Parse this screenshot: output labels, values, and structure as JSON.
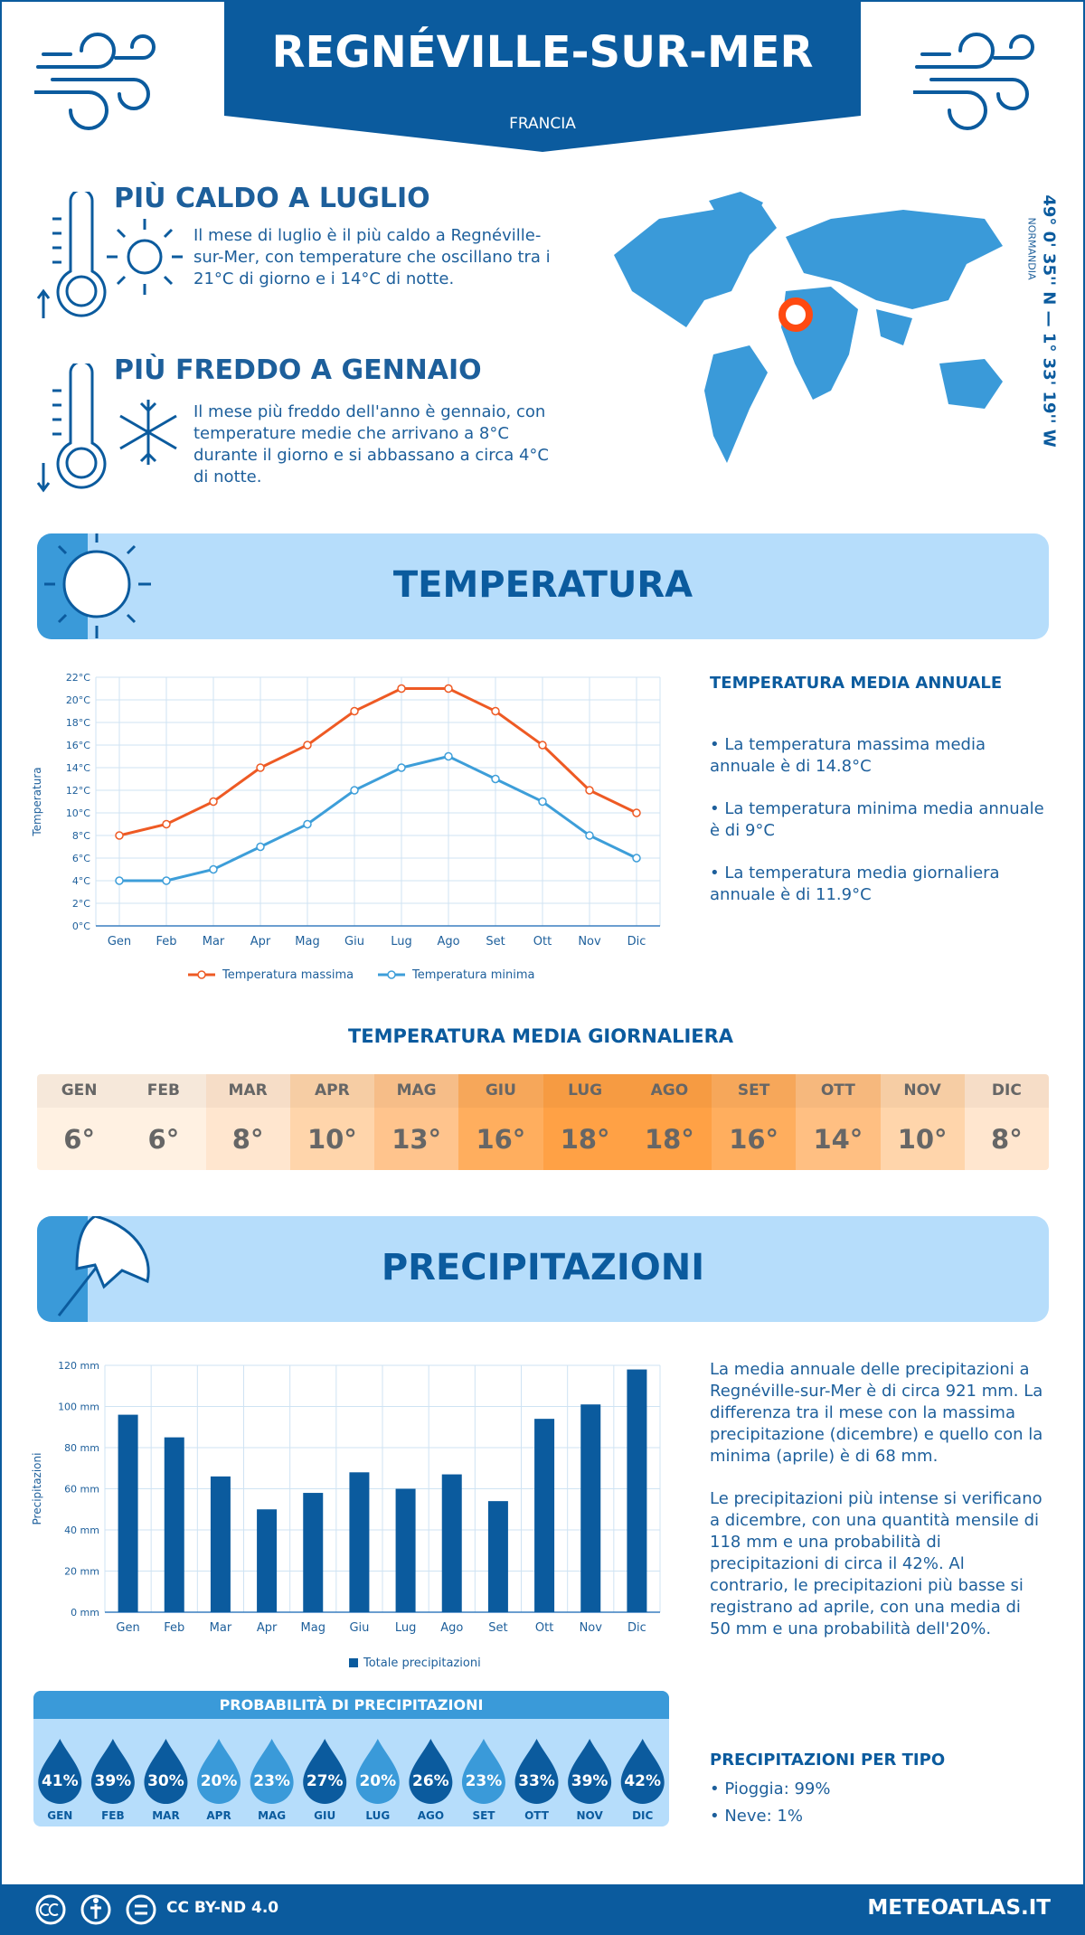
{
  "header": {
    "title": "REGNÉVILLE-SUR-MER",
    "subtitle": "FRANCIA"
  },
  "hottest": {
    "title": "PIÙ CALDO A LUGLIO",
    "text": "Il mese di luglio è il più caldo a Regnéville-sur-Mer, con temperature che oscillano tra i 21°C di giorno e i 14°C di notte."
  },
  "coldest": {
    "title": "PIÙ FREDDO A GENNAIO",
    "text": "Il mese più freddo dell'anno è gennaio, con temperature medie che arrivano a 8°C durante il giorno e si abbassano a circa 4°C di notte."
  },
  "map": {
    "coordinates": "49° 0' 35'' N — 1° 33' 19'' W",
    "region": "NORMANDIA"
  },
  "temperature": {
    "heading": "TEMPERATURA",
    "summary_title": "TEMPERATURA MEDIA ANNUALE",
    "bullets": [
      "• La temperatura massima media annuale è di 14.8°C",
      "• La temperatura minima media annuale è di 9°C",
      "• La temperatura media giornaliera annuale è di 11.9°C"
    ]
  },
  "daily": {
    "title": "TEMPERATURA MEDIA GIORNALIERA",
    "months": [
      "GEN",
      "FEB",
      "MAR",
      "APR",
      "MAG",
      "GIU",
      "LUG",
      "AGO",
      "SET",
      "OTT",
      "NOV",
      "DIC"
    ],
    "values": [
      "6°",
      "6°",
      "8°",
      "10°",
      "13°",
      "16°",
      "18°",
      "18°",
      "16°",
      "14°",
      "10°",
      "8°"
    ],
    "colors": [
      "#fff1e2",
      "#fff1e2",
      "#ffe6cf",
      "#ffd5ab",
      "#ffc48d",
      "#ffae5e",
      "#ffa145",
      "#ffa145",
      "#ffae5e",
      "#ffbf82",
      "#ffd5ab",
      "#ffe6cf"
    ]
  },
  "precipitation": {
    "heading": "PRECIPITAZIONI",
    "paragraphs": [
      "La media annuale delle precipitazioni a Regnéville-sur-Mer è di circa 921 mm. La differenza tra il mese con la massima precipitazione (dicembre) e quello con la minima (aprile) è di 68 mm.",
      "Le precipitazioni più intense si verificano a dicembre, con una quantità mensile di 118 mm e una probabilità di precipitazioni di circa il 42%. Al contrario, le precipitazioni più basse si registrano ad aprile, con una media di 50 mm e una probabilità dell'20%."
    ],
    "probability_title": "PROBABILITÀ DI PRECIPITAZIONI",
    "months": [
      "GEN",
      "FEB",
      "MAR",
      "APR",
      "MAG",
      "GIU",
      "LUG",
      "AGO",
      "SET",
      "OTT",
      "NOV",
      "DIC"
    ],
    "probabilities": [
      "41%",
      "39%",
      "30%",
      "20%",
      "23%",
      "27%",
      "20%",
      "26%",
      "23%",
      "33%",
      "39%",
      "42%"
    ],
    "drop_colors": [
      "#0b5b9e",
      "#0b5b9e",
      "#0b5b9e",
      "#3a9ad9",
      "#3a9ad9",
      "#0b5b9e",
      "#3a9ad9",
      "#0b5b9e",
      "#3a9ad9",
      "#0b5b9e",
      "#0b5b9e",
      "#0b5b9e"
    ],
    "types_title": "PRECIPITAZIONI PER TIPO",
    "types": [
      "• Pioggia: 99%",
      "• Neve: 1%"
    ]
  },
  "footer": {
    "license": "CC BY-ND 4.0",
    "site": "METEOATLAS.IT"
  },
  "chart_data": [
    {
      "type": "line",
      "y_label": "Temperatura",
      "categories": [
        "Gen",
        "Feb",
        "Mar",
        "Apr",
        "Mag",
        "Giu",
        "Lug",
        "Ago",
        "Set",
        "Ott",
        "Nov",
        "Dic"
      ],
      "ylim": [
        0,
        22
      ],
      "yticks": [
        {
          "value": 0,
          "label": "0°C"
        },
        {
          "value": 2,
          "label": "2°C"
        },
        {
          "value": 4,
          "label": "4°C"
        },
        {
          "value": 6,
          "label": "6°C"
        },
        {
          "value": 8,
          "label": "8°C"
        },
        {
          "value": 10,
          "label": "10°C"
        },
        {
          "value": 12,
          "label": "12°C"
        },
        {
          "value": 14,
          "label": "14°C"
        },
        {
          "value": 16,
          "label": "16°C"
        },
        {
          "value": 18,
          "label": "18°C"
        },
        {
          "value": 20,
          "label": "20°C"
        },
        {
          "value": 22,
          "label": "22°C"
        }
      ],
      "grid": true,
      "series": [
        {
          "name": "Temperatura massima",
          "color": "#ee5a24",
          "values": [
            8,
            9,
            11,
            14,
            16,
            19,
            21,
            21,
            19,
            16,
            12,
            10
          ]
        },
        {
          "name": "Temperatura minima",
          "color": "#3d9ed9",
          "values": [
            4,
            4,
            5,
            7,
            9,
            12,
            14,
            15,
            13,
            11,
            8,
            6
          ]
        }
      ]
    },
    {
      "type": "bar",
      "y_label": "Precipitazioni",
      "categories": [
        "Gen",
        "Feb",
        "Mar",
        "Apr",
        "Mag",
        "Giu",
        "Lug",
        "Ago",
        "Set",
        "Ott",
        "Nov",
        "Dic"
      ],
      "ylim": [
        0,
        120
      ],
      "yticks": [
        {
          "value": 0,
          "label": "0 mm"
        },
        {
          "value": 20,
          "label": "20 mm"
        },
        {
          "value": 40,
          "label": "40 mm"
        },
        {
          "value": 60,
          "label": "60 mm"
        },
        {
          "value": 80,
          "label": "80 mm"
        },
        {
          "value": 100,
          "label": "100 mm"
        },
        {
          "value": 120,
          "label": "120 mm"
        }
      ],
      "grid": true,
      "series": [
        {
          "name": "Totale precipitazioni",
          "color": "#0b5b9e",
          "values": [
            96,
            85,
            66,
            50,
            58,
            68,
            60,
            67,
            54,
            94,
            101,
            118
          ]
        }
      ]
    }
  ]
}
